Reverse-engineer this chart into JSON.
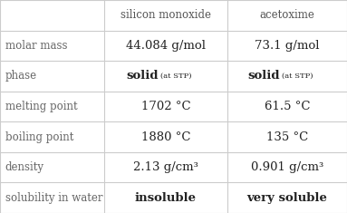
{
  "col_headers": [
    "",
    "silicon monoxide",
    "acetoxime"
  ],
  "rows": [
    [
      "molar mass",
      "44.084 g/mol",
      "73.1 g/mol"
    ],
    [
      "phase",
      "solid_stp",
      "solid_stp"
    ],
    [
      "melting point",
      "1702 °C",
      "61.5 °C"
    ],
    [
      "boiling point",
      "1880 °C",
      "135 °C"
    ],
    [
      "density",
      "2.13 g/cm³",
      "0.901 g/cm³"
    ],
    [
      "solubility in water",
      "insoluble",
      "very soluble"
    ]
  ],
  "bg_color": "#ffffff",
  "header_text_color": "#555555",
  "cell_text_color": "#222222",
  "row_label_color": "#666666",
  "grid_color": "#cccccc",
  "font_size": 8.5,
  "header_font_size": 8.5
}
